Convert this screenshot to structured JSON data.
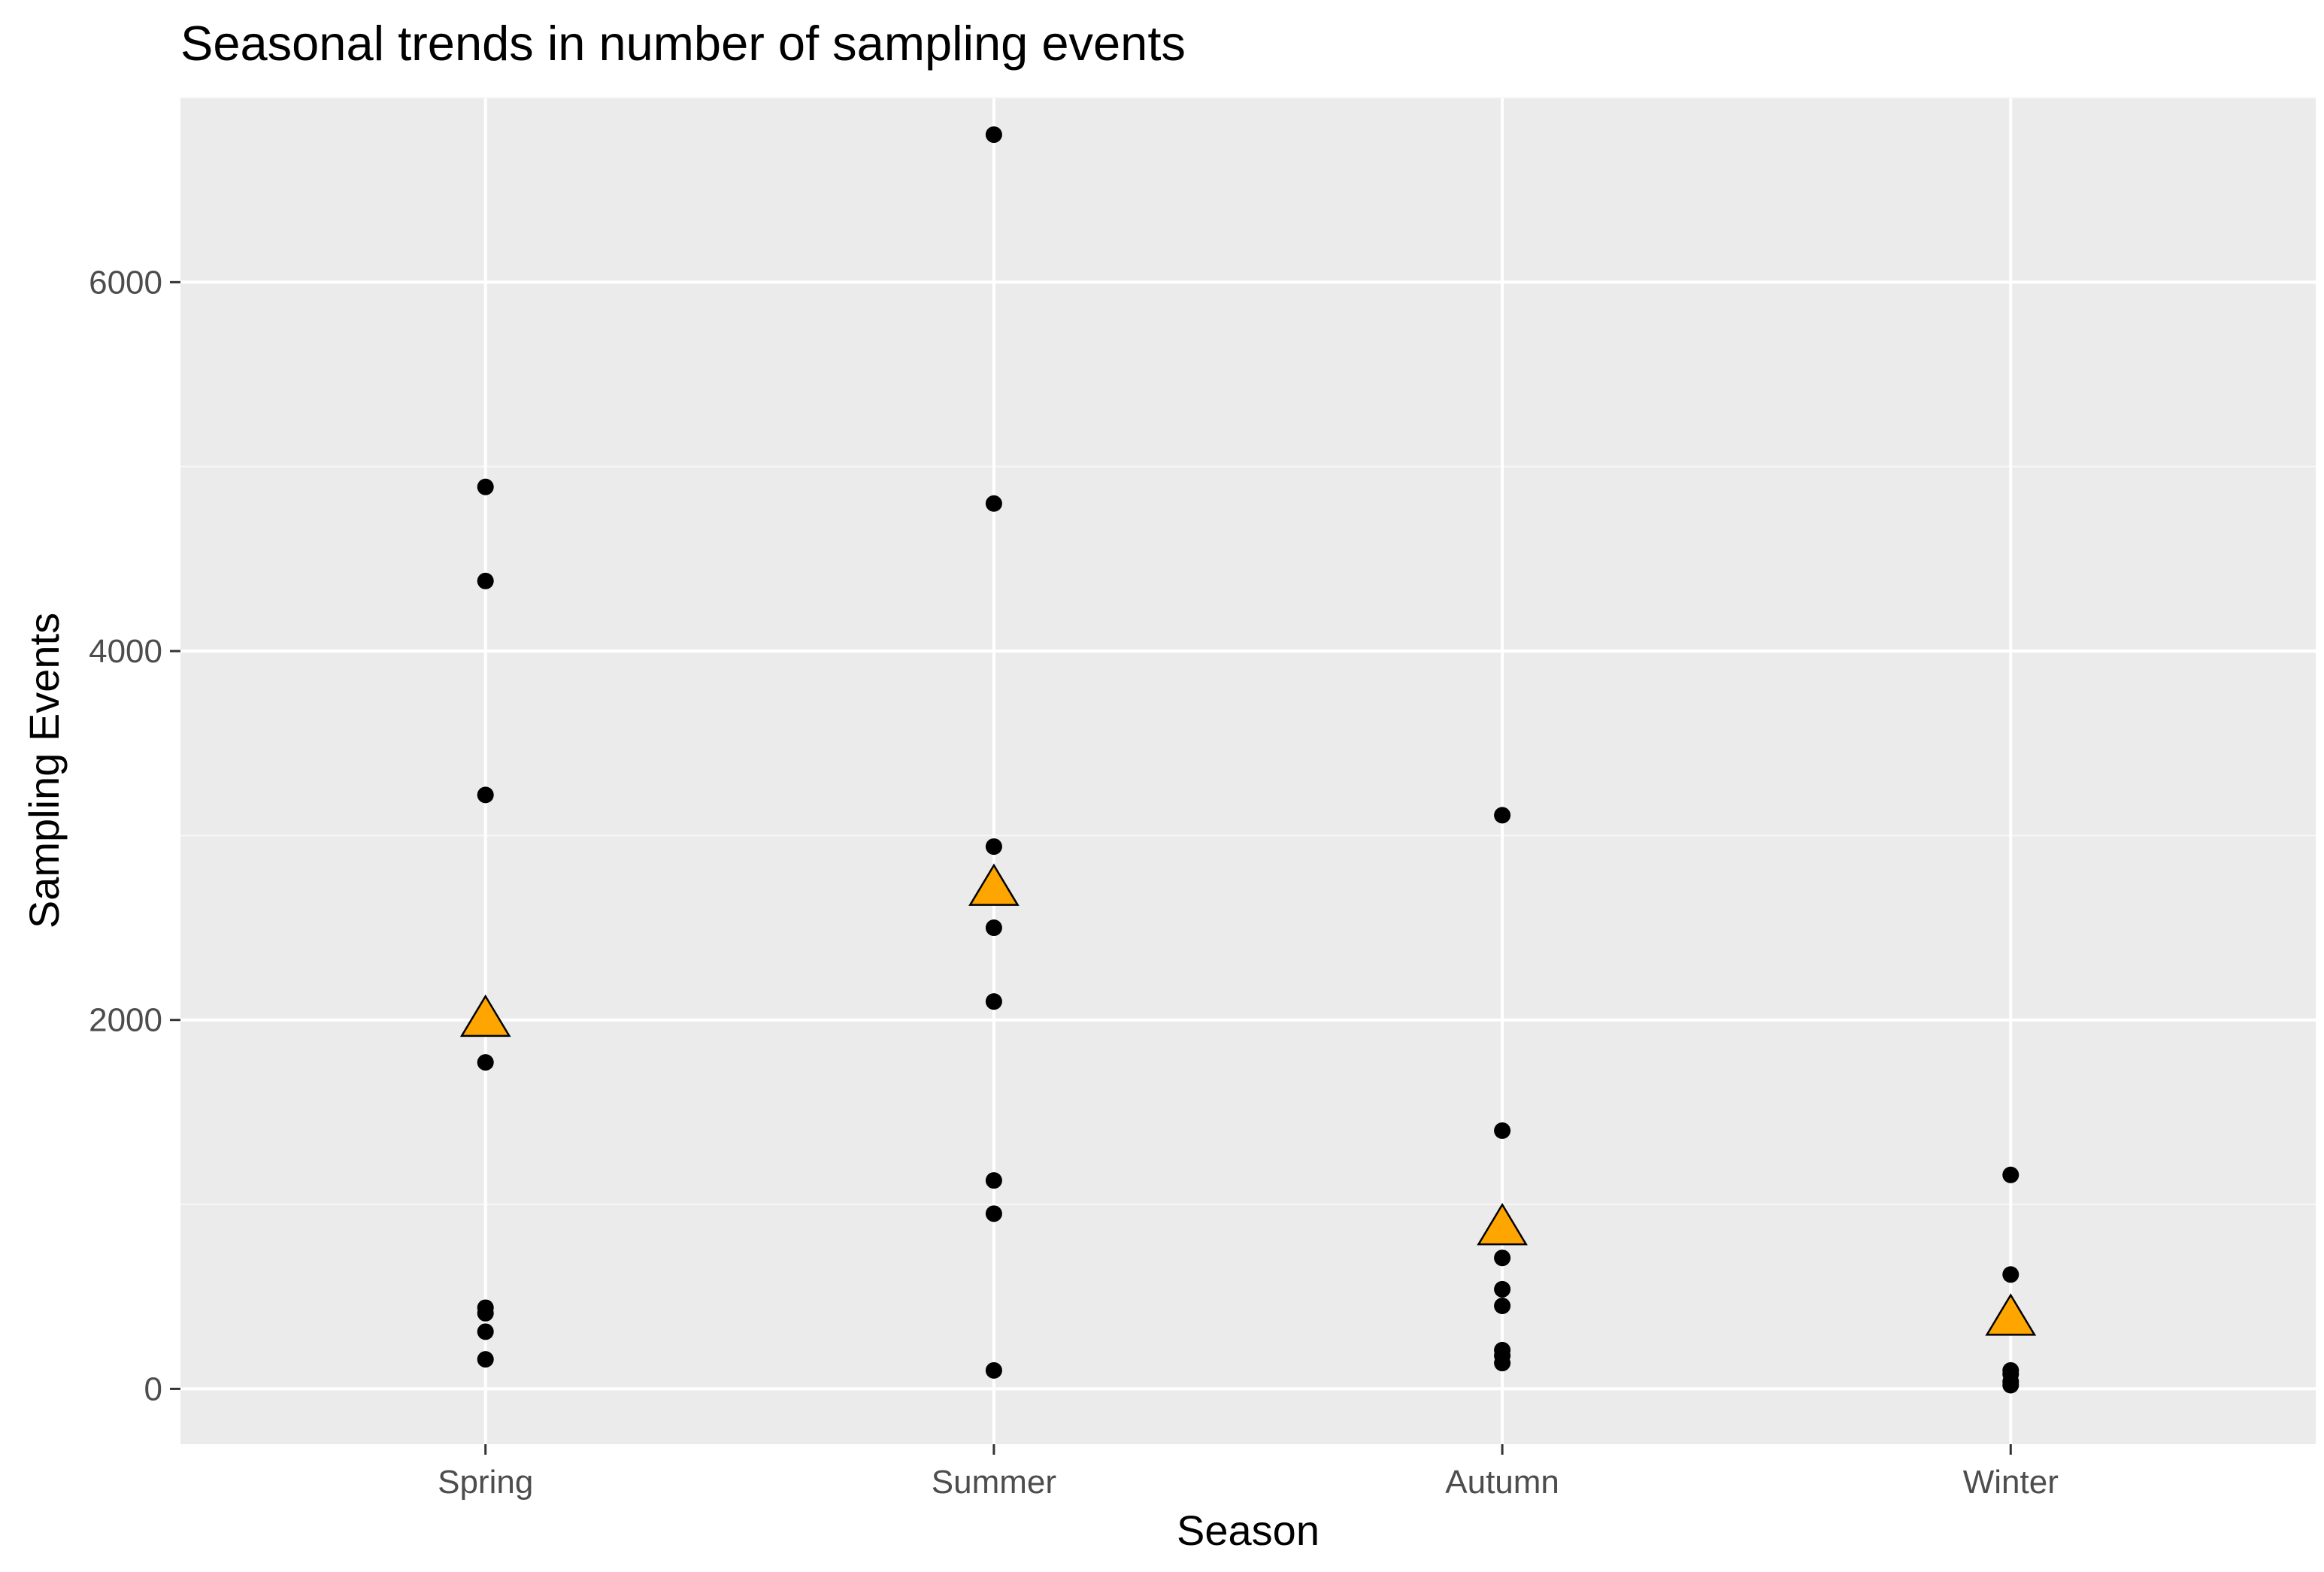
{
  "chart_data": {
    "type": "scatter",
    "title": "Seasonal trends in number of sampling events",
    "xlabel": "Season",
    "ylabel": "Sampling Events",
    "categories": [
      "Spring",
      "Summer",
      "Autumn",
      "Winter"
    ],
    "ylim": [
      -300,
      7000
    ],
    "yticks": [
      0,
      2000,
      4000,
      6000
    ],
    "grid": true,
    "series": [
      {
        "marker": "circle",
        "color": "#000000",
        "points": [
          {
            "x": "Spring",
            "y": 4890
          },
          {
            "x": "Spring",
            "y": 4380
          },
          {
            "x": "Spring",
            "y": 3220
          },
          {
            "x": "Spring",
            "y": 1770
          },
          {
            "x": "Spring",
            "y": 440
          },
          {
            "x": "Spring",
            "y": 410
          },
          {
            "x": "Spring",
            "y": 310
          },
          {
            "x": "Spring",
            "y": 160
          },
          {
            "x": "Summer",
            "y": 6800
          },
          {
            "x": "Summer",
            "y": 4800
          },
          {
            "x": "Summer",
            "y": 2940
          },
          {
            "x": "Summer",
            "y": 2500
          },
          {
            "x": "Summer",
            "y": 2100
          },
          {
            "x": "Summer",
            "y": 1130
          },
          {
            "x": "Summer",
            "y": 950
          },
          {
            "x": "Summer",
            "y": 100
          },
          {
            "x": "Autumn",
            "y": 3110
          },
          {
            "x": "Autumn",
            "y": 1400
          },
          {
            "x": "Autumn",
            "y": 710
          },
          {
            "x": "Autumn",
            "y": 540
          },
          {
            "x": "Autumn",
            "y": 450
          },
          {
            "x": "Autumn",
            "y": 210
          },
          {
            "x": "Autumn",
            "y": 180
          },
          {
            "x": "Autumn",
            "y": 140
          },
          {
            "x": "Winter",
            "y": 1160
          },
          {
            "x": "Winter",
            "y": 620
          },
          {
            "x": "Winter",
            "y": 100
          },
          {
            "x": "Winter",
            "y": 80
          },
          {
            "x": "Winter",
            "y": 40
          },
          {
            "x": "Winter",
            "y": 20
          }
        ]
      },
      {
        "marker": "triangle",
        "color": "#FFA500",
        "points": [
          {
            "x": "Spring",
            "y": 1990
          },
          {
            "x": "Summer",
            "y": 2700
          },
          {
            "x": "Autumn",
            "y": 860
          },
          {
            "x": "Winter",
            "y": 370
          }
        ]
      }
    ]
  },
  "colors": {
    "panel_background": "#EBEBEB",
    "grid_major": "#FFFFFF",
    "grid_minor": "#F7F7F7",
    "point": "#000000",
    "mean_marker": "#FFA500",
    "tick_text": "#4D4D4D",
    "tick_mark": "#333333"
  }
}
